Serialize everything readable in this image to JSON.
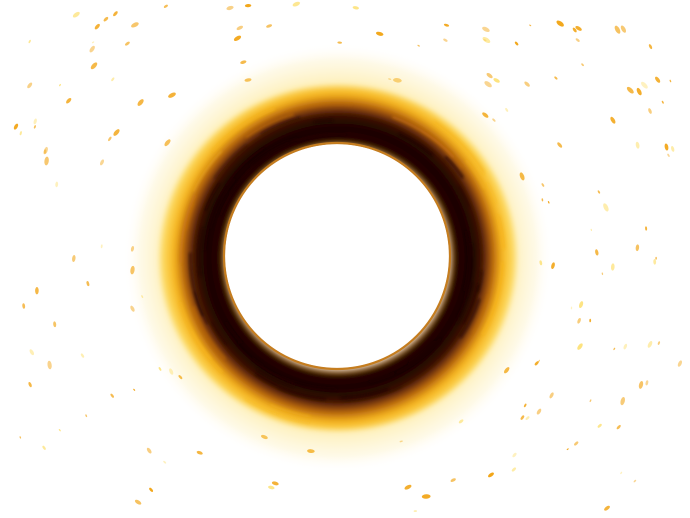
{
  "image": {
    "subject": "glowing-ring",
    "colors": {
      "background": "#ffffff",
      "outer_glow": "#fde27a",
      "ring_gold": "#f6b41c",
      "ring_orange": "#c97310",
      "ring_dark": "#3a0d05",
      "ring_core": "#1a0402",
      "inner_edge": "#d99a2b",
      "speckle": "#f2a516"
    }
  }
}
